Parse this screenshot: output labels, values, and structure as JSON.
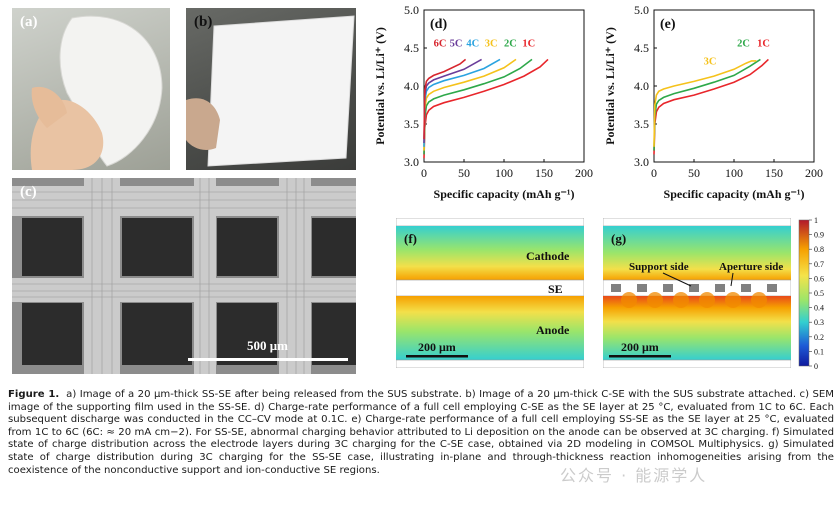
{
  "panels": {
    "a": {
      "label": "(a)"
    },
    "b": {
      "label": "(b)"
    },
    "c": {
      "label": "(c)",
      "scale_bar": "500 μm"
    },
    "f": {
      "label": "(f)",
      "region_top": "Cathode",
      "region_mid": "SE",
      "region_bottom": "Anode",
      "scale_bar": "200 μm"
    },
    "g": {
      "label": "(g)",
      "support_label": "Support side",
      "aperture_label": "Aperture side",
      "scale_bar": "200 μm"
    },
    "colorbar": {
      "ticks": [
        "1",
        "0.9",
        "0.8",
        "0.7",
        "0.6",
        "0.5",
        "0.4",
        "0.3",
        "0.2",
        "0.1",
        "0"
      ],
      "colors": [
        "#b2182b",
        "#f6a000",
        "#f5e34a",
        "#9be56a",
        "#32cfd0",
        "#1e5bd6",
        "#101a9e"
      ]
    }
  },
  "chart_data": [
    {
      "panel": "(d)",
      "type": "line",
      "xlabel": "Specific capacity (mAh g⁻¹)",
      "ylabel": "Potential vs. Li/Li⁺ (V)",
      "xlim": [
        0,
        200
      ],
      "ylim": [
        3.0,
        5.0
      ],
      "xticks": [
        "0",
        "50",
        "100",
        "150",
        "200"
      ],
      "yticks": [
        "3.0",
        "3.5",
        "4.0",
        "4.5",
        "5.0"
      ],
      "series": [
        {
          "name": "1C",
          "color": "#e8262b",
          "x": [
            0,
            1,
            3,
            6,
            12,
            25,
            50,
            75,
            100,
            125,
            145,
            155
          ],
          "y": [
            3.05,
            3.45,
            3.62,
            3.68,
            3.73,
            3.78,
            3.85,
            3.93,
            4.02,
            4.13,
            4.25,
            4.35
          ]
        },
        {
          "name": "2C",
          "color": "#2ea84a",
          "x": [
            0,
            1,
            3,
            6,
            12,
            25,
            50,
            75,
            100,
            120,
            135
          ],
          "y": [
            3.1,
            3.58,
            3.74,
            3.79,
            3.83,
            3.88,
            3.95,
            4.03,
            4.12,
            4.23,
            4.35
          ]
        },
        {
          "name": "3C",
          "color": "#f5c21b",
          "x": [
            0,
            1,
            3,
            6,
            12,
            25,
            50,
            75,
            100,
            115
          ],
          "y": [
            3.15,
            3.7,
            3.84,
            3.89,
            3.93,
            3.98,
            4.05,
            4.13,
            4.24,
            4.35
          ]
        },
        {
          "name": "4C",
          "color": "#2aa3e0",
          "x": [
            0,
            1,
            3,
            6,
            12,
            25,
            50,
            75,
            95
          ],
          "y": [
            3.2,
            3.8,
            3.93,
            3.98,
            4.02,
            4.07,
            4.14,
            4.23,
            4.35
          ]
        },
        {
          "name": "5C",
          "color": "#6a3d9a",
          "x": [
            0,
            1,
            3,
            6,
            12,
            25,
            50,
            72
          ],
          "y": [
            3.25,
            3.88,
            4.0,
            4.04,
            4.08,
            4.13,
            4.22,
            4.35
          ]
        },
        {
          "name": "6C",
          "color": "#d7262e",
          "x": [
            0,
            1,
            3,
            6,
            12,
            25,
            45,
            52
          ],
          "y": [
            3.3,
            3.95,
            4.06,
            4.1,
            4.14,
            4.19,
            4.29,
            4.35
          ]
        }
      ]
    },
    {
      "panel": "(e)",
      "type": "line",
      "xlabel": "Specific capacity (mAh g⁻¹)",
      "ylabel": "Potential vs. Li/Li⁺ (V)",
      "xlim": [
        0,
        200
      ],
      "ylim": [
        3.0,
        5.0
      ],
      "xticks": [
        "0",
        "50",
        "100",
        "150",
        "200"
      ],
      "yticks": [
        "3.0",
        "3.5",
        "4.0",
        "4.5",
        "5.0"
      ],
      "series": [
        {
          "name": "1C",
          "color": "#e8262b",
          "x": [
            0,
            1,
            3,
            6,
            12,
            25,
            50,
            75,
            100,
            120,
            135,
            143
          ],
          "y": [
            3.1,
            3.5,
            3.66,
            3.72,
            3.77,
            3.82,
            3.88,
            3.96,
            4.05,
            4.15,
            4.27,
            4.35
          ]
        },
        {
          "name": "2C",
          "color": "#2ea84a",
          "x": [
            0,
            1,
            3,
            6,
            12,
            25,
            50,
            75,
            100,
            120,
            133
          ],
          "y": [
            3.15,
            3.6,
            3.76,
            3.81,
            3.85,
            3.9,
            3.97,
            4.05,
            4.14,
            4.26,
            4.35
          ]
        },
        {
          "name": "3C",
          "color": "#f5c21b",
          "x": [
            0,
            1,
            3,
            6,
            12,
            25,
            50,
            75,
            100,
            115,
            122,
            128
          ],
          "y": [
            3.2,
            3.75,
            3.88,
            3.93,
            3.96,
            4.0,
            4.06,
            4.13,
            4.22,
            4.3,
            4.33,
            4.33
          ]
        }
      ]
    }
  ],
  "caption": {
    "figure_label": "Figure 1.",
    "text": "a) Image of a 20 μm-thick SS-SE after being released from the SUS substrate. b) Image of a 20 μm-thick C-SE with the SUS substrate attached. c) SEM image of the supporting film used in the SS-SE. d) Charge-rate performance of a full cell employing C-SE as the SE layer at 25 °C, evaluated from 1C to 6C. Each subsequent discharge was conducted in the CC–CV mode at 0.1C. e) Charge-rate performance of a full cell employing SS-SE as the SE layer at 25 °C, evaluated from 1C to 6C (6C: ≈ 20 mA cm−2). For SS-SE, abnormal charging behavior attributed to Li deposition on the anode can be observed at 3C charging. f) Simulated state of charge distribution across the electrode layers during 3C charging for the C-SE case, obtained via 2D modeling in COMSOL Multiphysics. g) Simulated state of charge distribution during 3C charging for the SS-SE case, illustrating in-plane and through-thickness reaction inhomogeneities arising from the coexistence of the nonconductive support and ion-conductive SE regions."
  },
  "watermark": "公众号 · 能源学人"
}
